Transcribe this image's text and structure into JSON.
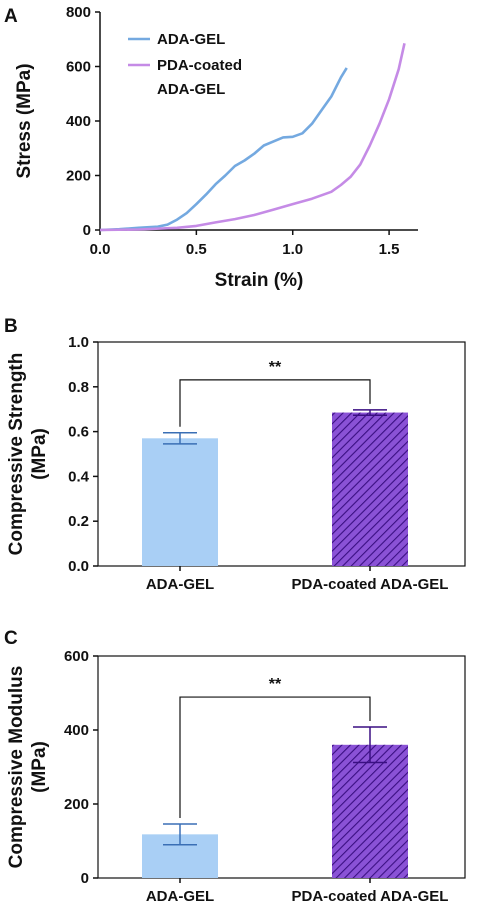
{
  "chart_data": [
    {
      "panel": "A",
      "type": "line",
      "title": "",
      "xlabel": "Strain (%)",
      "ylabel": "Stress (MPa)",
      "xlim": [
        0,
        1.65
      ],
      "ylim": [
        0,
        800
      ],
      "xticks": [
        "0.0",
        "0.5",
        "1.0",
        "1.5"
      ],
      "yticks": [
        "0",
        "200",
        "400",
        "600",
        "800"
      ],
      "legend_position": "top-left",
      "series": [
        {
          "name": "ADA-GEL",
          "name_lines": [
            "ADA-GEL"
          ],
          "color": "#74a9e0",
          "x": [
            0,
            0.1,
            0.2,
            0.3,
            0.35,
            0.4,
            0.45,
            0.5,
            0.55,
            0.6,
            0.65,
            0.7,
            0.75,
            0.8,
            0.85,
            0.9,
            0.95,
            1.0,
            1.05,
            1.1,
            1.15,
            1.2,
            1.25,
            1.28
          ],
          "y": [
            0,
            3,
            8,
            12,
            20,
            38,
            62,
            95,
            130,
            168,
            200,
            235,
            255,
            280,
            310,
            325,
            340,
            342,
            355,
            390,
            440,
            490,
            560,
            595
          ]
        },
        {
          "name": "PDA-coated ADA-GEL",
          "name_lines": [
            "PDA-coated",
            "ADA-GEL"
          ],
          "color": "#c58be6",
          "x": [
            0,
            0.2,
            0.4,
            0.5,
            0.6,
            0.7,
            0.8,
            0.9,
            1.0,
            1.1,
            1.2,
            1.25,
            1.3,
            1.35,
            1.4,
            1.45,
            1.5,
            1.55,
            1.58
          ],
          "y": [
            0,
            2,
            8,
            15,
            28,
            40,
            55,
            75,
            95,
            115,
            140,
            165,
            195,
            240,
            310,
            390,
            480,
            590,
            685
          ]
        }
      ]
    },
    {
      "panel": "B",
      "type": "bar",
      "title": "",
      "xlabel": "",
      "ylabel_lines": [
        "Compressive Strength",
        "(MPa)"
      ],
      "ylim": [
        0,
        1.0
      ],
      "yticks": [
        "0.0",
        "0.2",
        "0.4",
        "0.6",
        "0.8",
        "1.0"
      ],
      "categories": [
        "ADA-GEL",
        "PDA-coated ADA-GEL"
      ],
      "values": [
        0.57,
        0.685
      ],
      "errors": [
        0.025,
        0.012
      ],
      "significance": "**",
      "bar_styles": [
        {
          "fill": "#a9cff5",
          "hatched": false,
          "error_color": "#3a6fb5"
        },
        {
          "fill": "#8a52d6",
          "hatched": true,
          "hatch_color": "#3a0f82",
          "error_color": "#3a0f82"
        }
      ]
    },
    {
      "panel": "C",
      "type": "bar",
      "title": "",
      "xlabel": "",
      "ylabel_lines": [
        "Compressive Modulus",
        "(MPa)"
      ],
      "ylim": [
        0,
        600
      ],
      "yticks": [
        "0",
        "200",
        "400",
        "600"
      ],
      "categories": [
        "ADA-GEL",
        "PDA-coated ADA-GEL"
      ],
      "values": [
        118,
        360
      ],
      "errors": [
        28,
        48
      ],
      "significance": "**",
      "bar_styles": [
        {
          "fill": "#a9cff5",
          "hatched": false,
          "error_color": "#3a6fb5"
        },
        {
          "fill": "#8a52d6",
          "hatched": true,
          "hatch_color": "#3a0f82",
          "error_color": "#3a0f82"
        }
      ]
    }
  ]
}
